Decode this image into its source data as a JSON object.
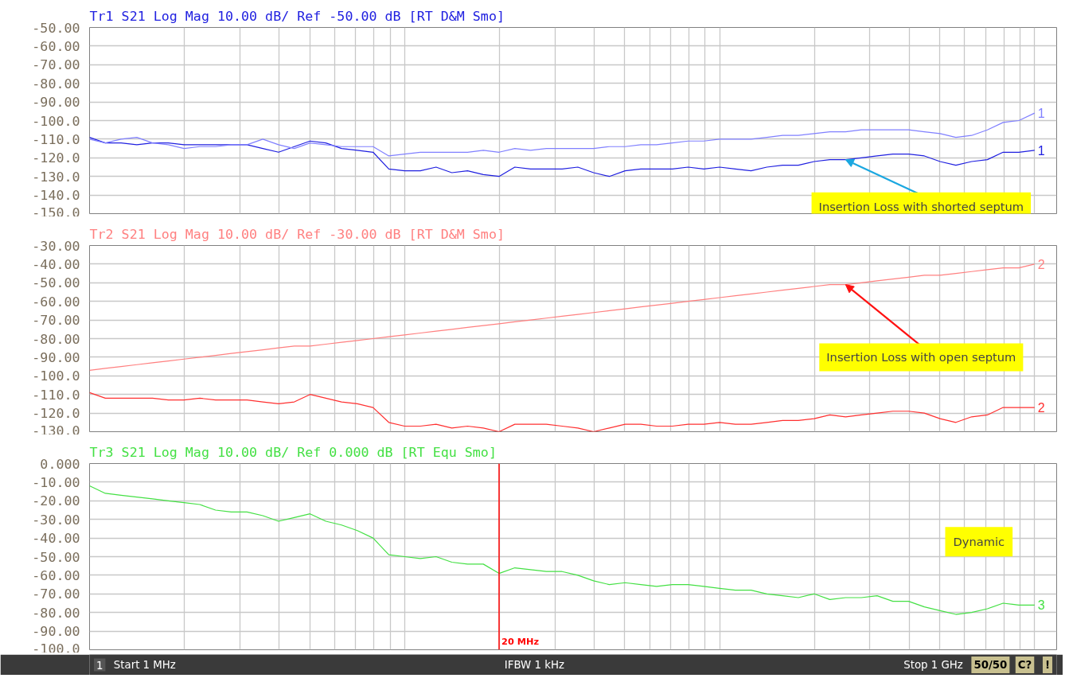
{
  "chart_data": [
    {
      "type": "line",
      "title": "Tr1 S21 Log Mag 10.00 dB/ Ref -50.00 dB [RT D&M Smo]",
      "grid": true,
      "tick_labels": "y",
      "categories": [
        null,
        null,
        null,
        null,
        null,
        null,
        null,
        null,
        null,
        null,
        null,
        null,
        null,
        null,
        null,
        null,
        null,
        null,
        null,
        null,
        null,
        null,
        null,
        null,
        null,
        null,
        null,
        null,
        null,
        null,
        null,
        null,
        null,
        null,
        null,
        null,
        null,
        null,
        null,
        null,
        null,
        null,
        null,
        null,
        null,
        null,
        null,
        null,
        null,
        null,
        null,
        null,
        null,
        null,
        null,
        null,
        null,
        null,
        null,
        null,
        null
      ],
      "ylim": [
        -150,
        -50
      ],
      "yticks": [
        {
          "value": -50,
          "label": "-50.00"
        },
        {
          "value": -60,
          "label": "-60.00"
        },
        {
          "value": -70,
          "label": "-70.00"
        },
        {
          "value": -80,
          "label": "-80.00"
        },
        {
          "value": -90,
          "label": "-90.00"
        },
        {
          "value": -100,
          "label": "-100.0"
        },
        {
          "value": -110,
          "label": "-110.0"
        },
        {
          "value": -120,
          "label": "-120.0"
        },
        {
          "value": -130,
          "label": "-130.0"
        },
        {
          "value": -140,
          "label": "-140.0"
        },
        {
          "value": -150,
          "label": "-150.0"
        }
      ],
      "series": [
        {
          "name": "1",
          "color": "#2020e0",
          "values": [
            -109,
            -112,
            -112,
            -113,
            -112,
            -112,
            -113,
            -113,
            -113,
            -113,
            -113,
            -115,
            -117,
            -114,
            -111,
            -112,
            -115,
            -116,
            -117,
            -126,
            -127,
            -127,
            -125,
            -128,
            -127,
            -129,
            -130,
            -125,
            -126,
            -126,
            -126,
            -125,
            -128,
            -130,
            -127,
            -126,
            -126,
            -126,
            -125,
            -126,
            -125,
            -126,
            -127,
            -125,
            -124,
            -124,
            -122,
            -121,
            -121,
            -120,
            -119,
            -118,
            -118,
            -119,
            -122,
            -124,
            -122,
            -121,
            -117,
            -117,
            -116
          ]
        },
        {
          "name": "1",
          "color": "#8080ff",
          "values": [
            -110,
            -112,
            -110,
            -109,
            -112,
            -113,
            -115,
            -114,
            -114,
            -113,
            -113,
            -110,
            -113,
            -115,
            -112,
            -113,
            -114,
            -114,
            -114,
            -119,
            -118,
            -117,
            -117,
            -117,
            -117,
            -116,
            -117,
            -115,
            -116,
            -115,
            -115,
            -115,
            -115,
            -114,
            -114,
            -113,
            -113,
            -112,
            -111,
            -111,
            -110,
            -110,
            -110,
            -109,
            -108,
            -108,
            -107,
            -106,
            -106,
            -105,
            -105,
            -105,
            -105,
            -106,
            -107,
            -109,
            -108,
            -105,
            -101,
            -100,
            -96
          ]
        }
      ],
      "annotations": [
        "Insertion Loss with shorted septum"
      ]
    },
    {
      "type": "line",
      "title": "Tr2 S21 Log Mag 10.00 dB/ Ref -30.00 dB [RT D&M Smo]",
      "grid": true,
      "tick_labels": "y",
      "categories": [
        null,
        null,
        null,
        null,
        null,
        null,
        null,
        null,
        null,
        null,
        null,
        null,
        null,
        null,
        null,
        null,
        null,
        null,
        null,
        null,
        null,
        null,
        null,
        null,
        null,
        null,
        null,
        null,
        null,
        null,
        null,
        null,
        null,
        null,
        null,
        null,
        null,
        null,
        null,
        null,
        null,
        null,
        null,
        null,
        null,
        null,
        null,
        null,
        null,
        null,
        null,
        null,
        null,
        null,
        null,
        null,
        null,
        null,
        null,
        null,
        null
      ],
      "ylim": [
        -130,
        -30
      ],
      "yticks": [
        {
          "value": -30,
          "label": "-30.00"
        },
        {
          "value": -40,
          "label": "-40.00"
        },
        {
          "value": -50,
          "label": "-50.00"
        },
        {
          "value": -60,
          "label": "-60.00"
        },
        {
          "value": -70,
          "label": "-70.00"
        },
        {
          "value": -80,
          "label": "-80.00"
        },
        {
          "value": -90,
          "label": "-90.00"
        },
        {
          "value": -100,
          "label": "-100.0"
        },
        {
          "value": -110,
          "label": "-110.0"
        },
        {
          "value": -120,
          "label": "-120.0"
        },
        {
          "value": -130,
          "label": "-130.0"
        }
      ],
      "series": [
        {
          "name": "2",
          "color": "#ff8080",
          "values": [
            -97,
            -96,
            -95,
            -94,
            -93,
            -92,
            -91,
            -90,
            -89,
            -88,
            -87,
            -86,
            -85,
            -84,
            -84,
            -83,
            -82,
            -81,
            -80,
            -79,
            -78,
            -77,
            -76,
            -75,
            -74,
            -73,
            -72,
            -71,
            -70,
            -69,
            -68,
            -67,
            -66,
            -65,
            -64,
            -63,
            -62,
            -61,
            -60,
            -59,
            -58,
            -57,
            -56,
            -55,
            -54,
            -53,
            -52,
            -51,
            -51,
            -50,
            -49,
            -48,
            -47,
            -46,
            -46,
            -45,
            -44,
            -43,
            -42,
            -42,
            -40
          ]
        },
        {
          "name": "2",
          "color": "#ff3030",
          "values": [
            -109,
            -112,
            -112,
            -112,
            -112,
            -113,
            -113,
            -112,
            -113,
            -113,
            -113,
            -114,
            -115,
            -114,
            -110,
            -112,
            -114,
            -115,
            -117,
            -125,
            -127,
            -127,
            -126,
            -128,
            -127,
            -128,
            -130,
            -126,
            -126,
            -126,
            -127,
            -128,
            -130,
            -128,
            -126,
            -126,
            -127,
            -127,
            -126,
            -126,
            -125,
            -126,
            -126,
            -125,
            -124,
            -124,
            -123,
            -121,
            -122,
            -121,
            -120,
            -119,
            -119,
            -120,
            -123,
            -125,
            -122,
            -121,
            -117,
            -117,
            -117
          ]
        }
      ],
      "annotations": [
        "Insertion Loss with open septum"
      ]
    },
    {
      "type": "line",
      "title": "Tr3 S21 Log Mag 10.00 dB/ Ref 0.000 dB [RT Equ Smo]",
      "grid": true,
      "tick_labels": "y",
      "categories": [
        null,
        null,
        null,
        null,
        null,
        null,
        null,
        null,
        null,
        null,
        null,
        null,
        null,
        null,
        null,
        null,
        null,
        null,
        null,
        null,
        null,
        null,
        null,
        null,
        null,
        null,
        null,
        null,
        null,
        null,
        null,
        null,
        null,
        null,
        null,
        null,
        null,
        null,
        null,
        null,
        null,
        null,
        null,
        null,
        null,
        null,
        null,
        null,
        null,
        null,
        null,
        null,
        null,
        null,
        null,
        null,
        null,
        null,
        null,
        null,
        null
      ],
      "ylim": [
        -100,
        0
      ],
      "yticks": [
        {
          "value": 0,
          "label": "0.000"
        },
        {
          "value": -10,
          "label": "-10.00"
        },
        {
          "value": -20,
          "label": "-20.00"
        },
        {
          "value": -30,
          "label": "-30.00"
        },
        {
          "value": -40,
          "label": "-40.00"
        },
        {
          "value": -50,
          "label": "-50.00"
        },
        {
          "value": -60,
          "label": "-60.00"
        },
        {
          "value": -70,
          "label": "-70.00"
        },
        {
          "value": -80,
          "label": "-80.00"
        },
        {
          "value": -90,
          "label": "-90.00"
        },
        {
          "value": -100,
          "label": "-100.0"
        }
      ],
      "series": [
        {
          "name": "3",
          "color": "#44e044",
          "values": [
            -12,
            -16,
            -17,
            -18,
            -19,
            -20,
            -21,
            -22,
            -25,
            -26,
            -26,
            -28,
            -31,
            -29,
            -27,
            -31,
            -33,
            -36,
            -40,
            -49,
            -50,
            -51,
            -50,
            -53,
            -54,
            -54,
            -59,
            -56,
            -57,
            -58,
            -58,
            -60,
            -63,
            -65,
            -64,
            -65,
            -66,
            -65,
            -65,
            -66,
            -67,
            -68,
            -68,
            -70,
            -71,
            -72,
            -70,
            -73,
            -72,
            -72,
            -71,
            -74,
            -74,
            -77,
            -79,
            -81,
            -80,
            -78,
            -75,
            -76,
            -76
          ]
        }
      ],
      "annotations": [
        "Dynamic",
        "20 MHz"
      ]
    },
    {
      "type": "other",
      "annotations": [
        "1",
        "Start 1 MHz",
        "IFBW 1 kHz",
        "Stop 1 GHz",
        "50/50",
        "C?",
        "!"
      ]
    }
  ]
}
